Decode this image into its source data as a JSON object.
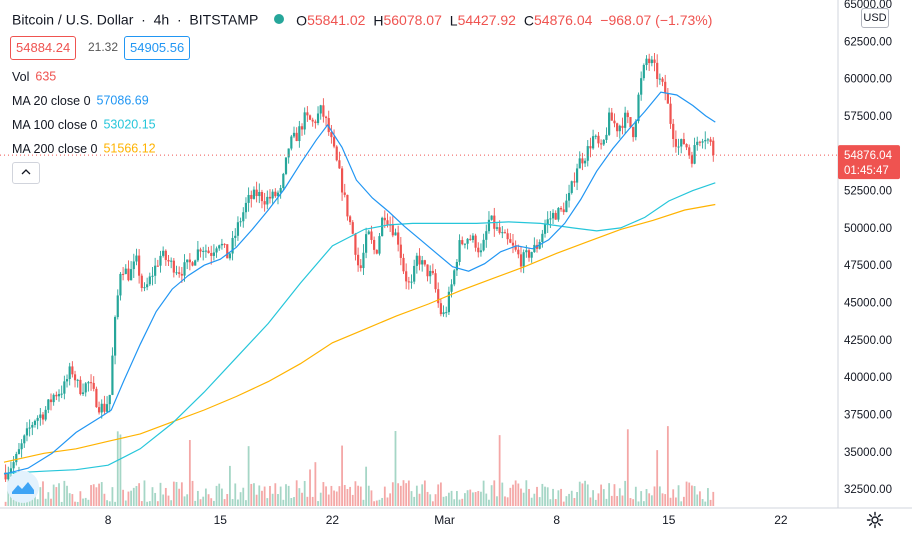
{
  "header": {
    "symbol": "Bitcoin / U.S. Dollar",
    "interval": "4h",
    "exchange": "BITSTAMP",
    "open_label": "O",
    "open": "55841.02",
    "high_label": "H",
    "high": "56078.07",
    "low_label": "L",
    "low": "54427.92",
    "close_label": "C",
    "close": "54876.04",
    "change": "−968.07 (−1.73%)"
  },
  "quote": {
    "bid": "54884.24",
    "spread": "21.32",
    "ask": "54905.56"
  },
  "indicators": {
    "vol": {
      "name": "Vol",
      "value": "635"
    },
    "ma20": {
      "name": "MA 20 close 0",
      "value": "57086.69",
      "color": "#2196f3"
    },
    "ma100": {
      "name": "MA 100 close 0",
      "value": "53020.15",
      "color": "#26c6da"
    },
    "ma200": {
      "name": "MA 200 close 0",
      "value": "51566.12",
      "color": "#ffb300"
    }
  },
  "colors": {
    "up": "#26a69a",
    "down": "#ef5350",
    "vol_up": "#a5d6c6",
    "vol_down": "#f4a7a6"
  },
  "price_axis": {
    "currency": "USD",
    "last_price": "54876.04",
    "countdown": "01:45:47"
  },
  "icons": {
    "collapse": "chevron-up-icon",
    "settings": "gear-icon",
    "logo": "tradingview-logo-icon"
  },
  "chart_data": {
    "type": "candlestick",
    "ylim": [
      31500,
      65000
    ],
    "y_ticks": [
      32500,
      35000,
      37500,
      40000,
      42500,
      45000,
      47500,
      50000,
      52500,
      55000,
      57500,
      60000,
      62500,
      65000
    ],
    "y_tick_labels": [
      "32500.00",
      "35000.00",
      "37500.00",
      "40000.00",
      "42500.00",
      "45000.00",
      "47500.00",
      "50000.00",
      "52500.00",
      "55000.00",
      "57500.00",
      "60000.00",
      "62500.00",
      "65000.00"
    ],
    "x_ticks": [
      {
        "label": "8",
        "day": 8
      },
      {
        "label": "15",
        "day": 15
      },
      {
        "label": "22",
        "day": 22
      },
      {
        "label": "Mar",
        "day": 29
      },
      {
        "label": "8",
        "day": 36
      },
      {
        "label": "15",
        "day": 43
      },
      {
        "label": "22",
        "day": 50
      }
    ],
    "day_range": [
      1.5,
      53
    ],
    "last_day": 45.9,
    "candle_interval_days": 0.1667,
    "price_path": [
      [
        1.6,
        33600
      ],
      [
        2.2,
        34400
      ],
      [
        2.8,
        35900
      ],
      [
        3.4,
        37200
      ],
      [
        4.0,
        37600
      ],
      [
        4.6,
        38800
      ],
      [
        5.2,
        39200
      ],
      [
        5.7,
        40600
      ],
      [
        6.2,
        39200
      ],
      [
        6.8,
        39600
      ],
      [
        7.4,
        38100
      ],
      [
        7.8,
        37900
      ],
      [
        8.1,
        38800
      ],
      [
        8.4,
        43300
      ],
      [
        8.8,
        47500
      ],
      [
        9.3,
        46800
      ],
      [
        9.8,
        47800
      ],
      [
        10.2,
        45500
      ],
      [
        10.7,
        46800
      ],
      [
        11.3,
        48200
      ],
      [
        11.9,
        47600
      ],
      [
        12.5,
        47100
      ],
      [
        13.1,
        47600
      ],
      [
        13.8,
        48800
      ],
      [
        14.4,
        48300
      ],
      [
        14.9,
        49200
      ],
      [
        15.5,
        48000
      ],
      [
        16.1,
        50100
      ],
      [
        16.7,
        51800
      ],
      [
        17.3,
        52300
      ],
      [
        17.8,
        51900
      ],
      [
        18.3,
        52100
      ],
      [
        18.8,
        52400
      ],
      [
        19.3,
        55600
      ],
      [
        19.8,
        56200
      ],
      [
        20.3,
        57400
      ],
      [
        20.8,
        57000
      ],
      [
        21.3,
        57900
      ],
      [
        21.6,
        57100
      ],
      [
        22.1,
        55100
      ],
      [
        22.5,
        53300
      ],
      [
        22.9,
        51200
      ],
      [
        23.3,
        49500
      ],
      [
        23.7,
        46900
      ],
      [
        24.2,
        49700
      ],
      [
        24.7,
        48200
      ],
      [
        25.2,
        51100
      ],
      [
        25.7,
        50100
      ],
      [
        26.1,
        49200
      ],
      [
        26.5,
        46900
      ],
      [
        26.9,
        45900
      ],
      [
        27.3,
        48100
      ],
      [
        27.8,
        47200
      ],
      [
        28.3,
        46600
      ],
      [
        28.7,
        44400
      ],
      [
        29.0,
        44100
      ],
      [
        29.4,
        45900
      ],
      [
        29.9,
        48800
      ],
      [
        30.4,
        49400
      ],
      [
        30.9,
        49100
      ],
      [
        31.3,
        48200
      ],
      [
        31.8,
        50600
      ],
      [
        32.3,
        49800
      ],
      [
        32.8,
        49200
      ],
      [
        33.3,
        48600
      ],
      [
        33.8,
        47800
      ],
      [
        34.3,
        48300
      ],
      [
        34.8,
        48800
      ],
      [
        35.3,
        50300
      ],
      [
        35.8,
        50900
      ],
      [
        36.3,
        51100
      ],
      [
        36.8,
        52100
      ],
      [
        37.3,
        54300
      ],
      [
        37.8,
        54900
      ],
      [
        38.3,
        56100
      ],
      [
        38.8,
        55100
      ],
      [
        39.3,
        57400
      ],
      [
        39.8,
        56700
      ],
      [
        40.3,
        57400
      ],
      [
        40.8,
        56400
      ],
      [
        41.2,
        59500
      ],
      [
        41.6,
        61300
      ],
      [
        42.0,
        60900
      ],
      [
        42.4,
        59900
      ],
      [
        42.8,
        59000
      ],
      [
        43.2,
        56600
      ],
      [
        43.6,
        55400
      ],
      [
        44.0,
        55800
      ],
      [
        44.4,
        54600
      ],
      [
        44.8,
        55900
      ],
      [
        45.2,
        56300
      ],
      [
        45.6,
        55600
      ],
      [
        45.9,
        54876
      ]
    ],
    "ma20_path": [
      [
        1.5,
        33500
      ],
      [
        3,
        33900
      ],
      [
        4.5,
        34900
      ],
      [
        6,
        36300
      ],
      [
        7.5,
        37300
      ],
      [
        8.2,
        37800
      ],
      [
        9.0,
        39800
      ],
      [
        10,
        42200
      ],
      [
        11,
        44400
      ],
      [
        12,
        45900
      ],
      [
        13,
        46800
      ],
      [
        14,
        47500
      ],
      [
        15,
        47900
      ],
      [
        16,
        48700
      ],
      [
        17,
        49900
      ],
      [
        18,
        51200
      ],
      [
        19,
        52600
      ],
      [
        20,
        54300
      ],
      [
        21,
        55900
      ],
      [
        21.7,
        56900
      ],
      [
        22.6,
        55400
      ],
      [
        23.5,
        53200
      ],
      [
        24.5,
        52000
      ],
      [
        25.5,
        51100
      ],
      [
        26.5,
        50100
      ],
      [
        27.5,
        49200
      ],
      [
        28.5,
        48300
      ],
      [
        29.5,
        47400
      ],
      [
        30.5,
        47100
      ],
      [
        31.5,
        47600
      ],
      [
        32.5,
        48400
      ],
      [
        33.5,
        48800
      ],
      [
        34.5,
        48600
      ],
      [
        35.5,
        49200
      ],
      [
        36.5,
        50300
      ],
      [
        37.5,
        51900
      ],
      [
        38.5,
        53800
      ],
      [
        39.5,
        55300
      ],
      [
        40.5,
        56600
      ],
      [
        41.5,
        57800
      ],
      [
        42.5,
        59100
      ],
      [
        43.5,
        58900
      ],
      [
        44.5,
        58200
      ],
      [
        45.3,
        57500
      ],
      [
        45.9,
        57087
      ]
    ],
    "ma100_path": [
      [
        1.5,
        33550
      ],
      [
        4,
        33700
      ],
      [
        6,
        33800
      ],
      [
        8,
        34100
      ],
      [
        10,
        35200
      ],
      [
        12,
        36900
      ],
      [
        14,
        39000
      ],
      [
        16,
        41300
      ],
      [
        18,
        43600
      ],
      [
        20,
        46300
      ],
      [
        22,
        48800
      ],
      [
        24,
        49900
      ],
      [
        25.5,
        50200
      ],
      [
        27,
        50300
      ],
      [
        29,
        50300
      ],
      [
        31,
        50300
      ],
      [
        33,
        50400
      ],
      [
        35,
        50300
      ],
      [
        37,
        50000
      ],
      [
        38.5,
        49800
      ],
      [
        40,
        50000
      ],
      [
        41.5,
        50700
      ],
      [
        43,
        51800
      ],
      [
        44.5,
        52500
      ],
      [
        45.9,
        53020
      ]
    ],
    "ma200_path": [
      [
        1.5,
        34300
      ],
      [
        4,
        34900
      ],
      [
        6,
        35200
      ],
      [
        8,
        35700
      ],
      [
        10,
        36200
      ],
      [
        12,
        37000
      ],
      [
        14,
        37800
      ],
      [
        16,
        38700
      ],
      [
        18,
        39700
      ],
      [
        20,
        40900
      ],
      [
        22,
        42300
      ],
      [
        24,
        43200
      ],
      [
        26,
        44100
      ],
      [
        28,
        44900
      ],
      [
        30,
        45800
      ],
      [
        32,
        46600
      ],
      [
        34,
        47400
      ],
      [
        36,
        48300
      ],
      [
        38,
        49100
      ],
      [
        40,
        49900
      ],
      [
        42,
        50500
      ],
      [
        44,
        51200
      ],
      [
        45.9,
        51566
      ]
    ],
    "volume_scale_max": 30000
  }
}
